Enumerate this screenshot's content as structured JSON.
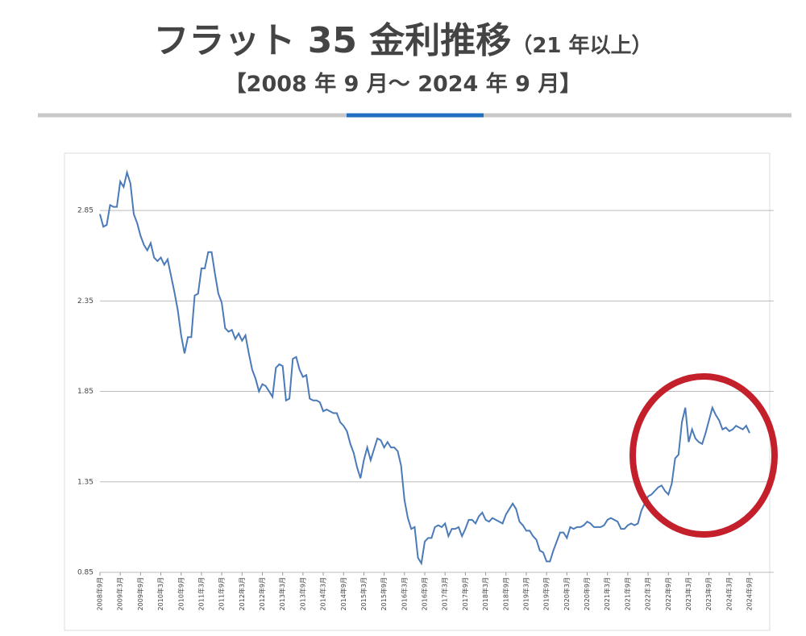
{
  "chart_data": {
    "type": "line",
    "title": "フラット 35 金利推移",
    "title_note": "（21 年以上）",
    "subtitle": "【2008 年 9 月～ 2024 年 9 月】",
    "categories": [
      "2008年9月",
      null,
      null,
      null,
      null,
      null,
      "2009年3月",
      null,
      null,
      null,
      null,
      null,
      "2009年9月",
      null,
      null,
      null,
      null,
      null,
      "2010年3月",
      null,
      null,
      null,
      null,
      null,
      "2010年9月",
      null,
      null,
      null,
      null,
      null,
      "2011年3月",
      null,
      null,
      null,
      null,
      null,
      "2011年9月",
      null,
      null,
      null,
      null,
      null,
      "2012年3月",
      null,
      null,
      null,
      null,
      null,
      "2012年9月",
      null,
      null,
      null,
      null,
      null,
      "2013年3月",
      null,
      null,
      null,
      null,
      null,
      "2013年9月",
      null,
      null,
      null,
      null,
      null,
      "2014年3月",
      null,
      null,
      null,
      null,
      null,
      "2014年9月",
      null,
      null,
      null,
      null,
      null,
      "2015年3月",
      null,
      null,
      null,
      null,
      null,
      "2015年9月",
      null,
      null,
      null,
      null,
      null,
      "2016年3月",
      null,
      null,
      null,
      null,
      null,
      "2016年9月",
      null,
      null,
      null,
      null,
      null,
      "2017年3月",
      null,
      null,
      null,
      null,
      null,
      "2017年9月",
      null,
      null,
      null,
      null,
      null,
      "2018年3月",
      null,
      null,
      null,
      null,
      null,
      "2018年9月",
      null,
      null,
      null,
      null,
      null,
      "2019年3月",
      null,
      null,
      null,
      null,
      null,
      "2019年9月",
      null,
      null,
      null,
      null,
      null,
      "2020年3月",
      null,
      null,
      null,
      null,
      null,
      "2020年9月",
      null,
      null,
      null,
      null,
      null,
      "2021年3月",
      null,
      null,
      null,
      null,
      null,
      "2021年9月",
      null,
      null,
      null,
      null,
      null,
      "2022年3月",
      null,
      null,
      null,
      null,
      null,
      "2022年9月",
      null,
      null,
      null,
      null,
      null,
      "2023年3月",
      null,
      null,
      null,
      null,
      null,
      "2023年9月",
      null,
      null,
      null,
      null,
      null,
      "2024年3月",
      null,
      null,
      null,
      null,
      null,
      "2024年9月"
    ],
    "values": [
      2.83,
      2.76,
      2.77,
      2.88,
      2.87,
      2.87,
      3.01,
      2.98,
      3.06,
      3.0,
      2.83,
      2.78,
      2.71,
      2.66,
      2.63,
      2.67,
      2.59,
      2.57,
      2.59,
      2.55,
      2.58,
      2.49,
      2.4,
      2.3,
      2.16,
      2.06,
      2.15,
      2.15,
      2.38,
      2.39,
      2.53,
      2.53,
      2.62,
      2.62,
      2.5,
      2.39,
      2.34,
      2.2,
      2.18,
      2.19,
      2.14,
      2.17,
      2.13,
      2.16,
      2.06,
      1.97,
      1.92,
      1.85,
      1.89,
      1.88,
      1.85,
      1.82,
      1.98,
      2.0,
      1.99,
      1.8,
      1.81,
      2.03,
      2.04,
      1.97,
      1.93,
      1.94,
      1.81,
      1.8,
      1.8,
      1.79,
      1.74,
      1.75,
      1.74,
      1.73,
      1.73,
      1.68,
      1.66,
      1.63,
      1.56,
      1.51,
      1.43,
      1.37,
      1.47,
      1.54,
      1.47,
      1.53,
      1.59,
      1.58,
      1.54,
      1.57,
      1.54,
      1.54,
      1.52,
      1.44,
      1.25,
      1.15,
      1.09,
      1.1,
      0.93,
      0.9,
      1.02,
      1.04,
      1.04,
      1.1,
      1.11,
      1.1,
      1.12,
      1.05,
      1.09,
      1.09,
      1.1,
      1.05,
      1.09,
      1.14,
      1.14,
      1.12,
      1.16,
      1.18,
      1.14,
      1.13,
      1.15,
      1.14,
      1.13,
      1.12,
      1.17,
      1.2,
      1.23,
      1.2,
      1.13,
      1.11,
      1.08,
      1.08,
      1.05,
      1.03,
      0.97,
      0.96,
      0.91,
      0.91,
      0.97,
      1.02,
      1.07,
      1.07,
      1.04,
      1.1,
      1.09,
      1.1,
      1.1,
      1.11,
      1.13,
      1.12,
      1.1,
      1.1,
      1.1,
      1.11,
      1.14,
      1.15,
      1.14,
      1.13,
      1.09,
      1.09,
      1.11,
      1.12,
      1.11,
      1.12,
      1.19,
      1.23,
      1.27,
      1.28,
      1.3,
      1.32,
      1.33,
      1.3,
      1.28,
      1.34,
      1.48,
      1.5,
      1.68,
      1.76,
      1.57,
      1.64,
      1.59,
      1.57,
      1.56,
      1.62,
      1.69,
      1.76,
      1.72,
      1.69,
      1.64,
      1.65,
      1.63,
      1.64,
      1.66,
      1.65,
      1.64,
      1.66,
      1.62
    ],
    "color": "#4a7ab8",
    "ylim": [
      0.85,
      3.1
    ],
    "yticks": [
      0.85,
      1.35,
      1.85,
      2.35,
      2.85
    ],
    "grid": true
  }
}
